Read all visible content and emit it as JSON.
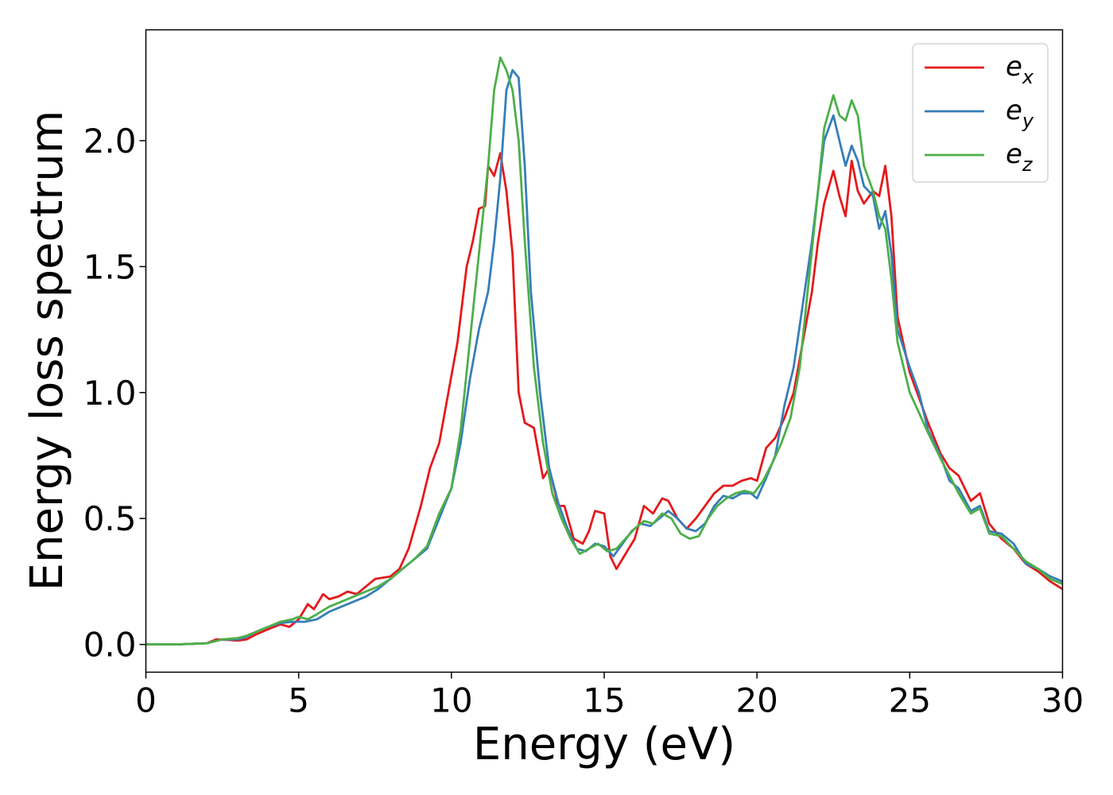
{
  "chart_data": {
    "type": "line",
    "xlabel": "Energy (eV)",
    "ylabel": "Energy loss spectrum",
    "xlim": [
      0,
      30
    ],
    "ylim": [
      -0.11,
      2.44
    ],
    "xticks": [
      0,
      5,
      10,
      15,
      20,
      25,
      30
    ],
    "xtick_labels": [
      "0",
      "5",
      "10",
      "15",
      "20",
      "25",
      "30"
    ],
    "yticks": [
      0.0,
      0.5,
      1.0,
      1.5,
      2.0
    ],
    "ytick_labels": [
      "0.0",
      "0.5",
      "1.0",
      "1.5",
      "2.0"
    ],
    "grid": false,
    "legend_position": "top-right",
    "series": [
      {
        "name": "e",
        "name_sub": "x",
        "color": "#e41a1c",
        "points": [
          [
            0,
            0
          ],
          [
            1,
            0
          ],
          [
            2,
            0.005
          ],
          [
            2.3,
            0.02
          ],
          [
            2.7,
            0.018
          ],
          [
            3,
            0.015
          ],
          [
            3.3,
            0.02
          ],
          [
            3.6,
            0.04
          ],
          [
            4,
            0.06
          ],
          [
            4.4,
            0.08
          ],
          [
            4.7,
            0.07
          ],
          [
            5,
            0.1
          ],
          [
            5.3,
            0.16
          ],
          [
            5.5,
            0.14
          ],
          [
            5.8,
            0.2
          ],
          [
            6,
            0.18
          ],
          [
            6.3,
            0.19
          ],
          [
            6.6,
            0.21
          ],
          [
            6.9,
            0.2
          ],
          [
            7.2,
            0.23
          ],
          [
            7.5,
            0.26
          ],
          [
            8,
            0.27
          ],
          [
            8.3,
            0.3
          ],
          [
            8.6,
            0.38
          ],
          [
            9,
            0.55
          ],
          [
            9.3,
            0.7
          ],
          [
            9.6,
            0.8
          ],
          [
            9.9,
            1.0
          ],
          [
            10.2,
            1.2
          ],
          [
            10.5,
            1.5
          ],
          [
            10.7,
            1.6
          ],
          [
            10.9,
            1.73
          ],
          [
            11.1,
            1.74
          ],
          [
            11.2,
            1.9
          ],
          [
            11.4,
            1.86
          ],
          [
            11.6,
            1.95
          ],
          [
            11.8,
            1.8
          ],
          [
            12.0,
            1.55
          ],
          [
            12.2,
            1.0
          ],
          [
            12.4,
            0.88
          ],
          [
            12.7,
            0.86
          ],
          [
            13.0,
            0.66
          ],
          [
            13.2,
            0.7
          ],
          [
            13.5,
            0.55
          ],
          [
            13.7,
            0.55
          ],
          [
            14.0,
            0.42
          ],
          [
            14.3,
            0.4
          ],
          [
            14.5,
            0.45
          ],
          [
            14.7,
            0.53
          ],
          [
            15.0,
            0.52
          ],
          [
            15.2,
            0.35
          ],
          [
            15.4,
            0.3
          ],
          [
            15.7,
            0.36
          ],
          [
            16.0,
            0.42
          ],
          [
            16.3,
            0.55
          ],
          [
            16.6,
            0.52
          ],
          [
            16.9,
            0.58
          ],
          [
            17.1,
            0.57
          ],
          [
            17.4,
            0.5
          ],
          [
            17.7,
            0.46
          ],
          [
            18.0,
            0.5
          ],
          [
            18.3,
            0.55
          ],
          [
            18.6,
            0.6
          ],
          [
            18.9,
            0.63
          ],
          [
            19.2,
            0.63
          ],
          [
            19.5,
            0.65
          ],
          [
            19.8,
            0.66
          ],
          [
            20.0,
            0.65
          ],
          [
            20.3,
            0.78
          ],
          [
            20.6,
            0.82
          ],
          [
            20.9,
            0.9
          ],
          [
            21.2,
            1.0
          ],
          [
            21.5,
            1.2
          ],
          [
            21.8,
            1.4
          ],
          [
            22.0,
            1.6
          ],
          [
            22.2,
            1.75
          ],
          [
            22.5,
            1.88
          ],
          [
            22.7,
            1.78
          ],
          [
            22.9,
            1.7
          ],
          [
            23.1,
            1.92
          ],
          [
            23.3,
            1.8
          ],
          [
            23.5,
            1.75
          ],
          [
            23.8,
            1.8
          ],
          [
            24.0,
            1.78
          ],
          [
            24.2,
            1.9
          ],
          [
            24.4,
            1.7
          ],
          [
            24.6,
            1.3
          ],
          [
            25.0,
            1.08
          ],
          [
            25.3,
            0.98
          ],
          [
            25.6,
            0.88
          ],
          [
            26.0,
            0.76
          ],
          [
            26.3,
            0.7
          ],
          [
            26.6,
            0.67
          ],
          [
            27.0,
            0.57
          ],
          [
            27.3,
            0.6
          ],
          [
            27.6,
            0.48
          ],
          [
            28.0,
            0.42
          ],
          [
            28.4,
            0.38
          ],
          [
            28.8,
            0.32
          ],
          [
            29.2,
            0.29
          ],
          [
            29.6,
            0.25
          ],
          [
            30,
            0.22
          ]
        ]
      },
      {
        "name": "e",
        "name_sub": "y",
        "color": "#377eb8",
        "points": [
          [
            0,
            0
          ],
          [
            1,
            0
          ],
          [
            2,
            0.005
          ],
          [
            2.5,
            0.02
          ],
          [
            3,
            0.02
          ],
          [
            3.3,
            0.03
          ],
          [
            3.6,
            0.05
          ],
          [
            4,
            0.07
          ],
          [
            4.4,
            0.085
          ],
          [
            4.8,
            0.09
          ],
          [
            5.2,
            0.09
          ],
          [
            5.6,
            0.1
          ],
          [
            6,
            0.13
          ],
          [
            6.4,
            0.15
          ],
          [
            6.8,
            0.17
          ],
          [
            7.2,
            0.19
          ],
          [
            7.6,
            0.22
          ],
          [
            8,
            0.26
          ],
          [
            8.4,
            0.3
          ],
          [
            8.8,
            0.34
          ],
          [
            9.2,
            0.38
          ],
          [
            9.6,
            0.5
          ],
          [
            10,
            0.62
          ],
          [
            10.3,
            0.8
          ],
          [
            10.6,
            1.05
          ],
          [
            10.9,
            1.25
          ],
          [
            11.2,
            1.4
          ],
          [
            11.4,
            1.6
          ],
          [
            11.6,
            1.85
          ],
          [
            11.8,
            2.2
          ],
          [
            12.0,
            2.28
          ],
          [
            12.2,
            2.25
          ],
          [
            12.4,
            1.9
          ],
          [
            12.6,
            1.4
          ],
          [
            12.9,
            1.0
          ],
          [
            13.2,
            0.7
          ],
          [
            13.5,
            0.56
          ],
          [
            13.8,
            0.46
          ],
          [
            14.1,
            0.38
          ],
          [
            14.4,
            0.37
          ],
          [
            14.7,
            0.4
          ],
          [
            15.0,
            0.39
          ],
          [
            15.3,
            0.35
          ],
          [
            15.6,
            0.4
          ],
          [
            15.9,
            0.45
          ],
          [
            16.2,
            0.48
          ],
          [
            16.5,
            0.47
          ],
          [
            16.8,
            0.5
          ],
          [
            17.1,
            0.53
          ],
          [
            17.4,
            0.5
          ],
          [
            17.7,
            0.46
          ],
          [
            18.0,
            0.45
          ],
          [
            18.3,
            0.48
          ],
          [
            18.6,
            0.55
          ],
          [
            18.9,
            0.59
          ],
          [
            19.2,
            0.58
          ],
          [
            19.5,
            0.6
          ],
          [
            19.8,
            0.6
          ],
          [
            20.0,
            0.58
          ],
          [
            20.3,
            0.66
          ],
          [
            20.6,
            0.75
          ],
          [
            20.9,
            0.95
          ],
          [
            21.2,
            1.1
          ],
          [
            21.5,
            1.35
          ],
          [
            21.8,
            1.6
          ],
          [
            22.0,
            1.8
          ],
          [
            22.2,
            2.0
          ],
          [
            22.5,
            2.1
          ],
          [
            22.7,
            2.0
          ],
          [
            22.9,
            1.9
          ],
          [
            23.1,
            1.98
          ],
          [
            23.3,
            1.92
          ],
          [
            23.5,
            1.82
          ],
          [
            23.8,
            1.78
          ],
          [
            24.0,
            1.65
          ],
          [
            24.2,
            1.72
          ],
          [
            24.4,
            1.55
          ],
          [
            24.6,
            1.25
          ],
          [
            25.0,
            1.1
          ],
          [
            25.3,
            1.0
          ],
          [
            25.6,
            0.85
          ],
          [
            26.0,
            0.75
          ],
          [
            26.3,
            0.65
          ],
          [
            26.6,
            0.62
          ],
          [
            27.0,
            0.53
          ],
          [
            27.3,
            0.55
          ],
          [
            27.6,
            0.45
          ],
          [
            28.0,
            0.44
          ],
          [
            28.4,
            0.4
          ],
          [
            28.8,
            0.32
          ],
          [
            29.2,
            0.3
          ],
          [
            29.6,
            0.27
          ],
          [
            30,
            0.25
          ]
        ]
      },
      {
        "name": "e",
        "name_sub": "z",
        "color": "#4daf4a",
        "points": [
          [
            0,
            0
          ],
          [
            1,
            0
          ],
          [
            2,
            0.005
          ],
          [
            2.5,
            0.02
          ],
          [
            3,
            0.025
          ],
          [
            3.3,
            0.035
          ],
          [
            3.6,
            0.05
          ],
          [
            4,
            0.07
          ],
          [
            4.4,
            0.09
          ],
          [
            4.8,
            0.1
          ],
          [
            5.0,
            0.11
          ],
          [
            5.3,
            0.1
          ],
          [
            5.6,
            0.12
          ],
          [
            6,
            0.15
          ],
          [
            6.4,
            0.17
          ],
          [
            6.8,
            0.19
          ],
          [
            7.2,
            0.21
          ],
          [
            7.6,
            0.23
          ],
          [
            8,
            0.26
          ],
          [
            8.4,
            0.3
          ],
          [
            8.8,
            0.34
          ],
          [
            9.2,
            0.39
          ],
          [
            9.6,
            0.52
          ],
          [
            10,
            0.62
          ],
          [
            10.3,
            0.85
          ],
          [
            10.6,
            1.2
          ],
          [
            10.9,
            1.55
          ],
          [
            11.2,
            1.9
          ],
          [
            11.4,
            2.2
          ],
          [
            11.6,
            2.33
          ],
          [
            11.8,
            2.28
          ],
          [
            12.0,
            2.2
          ],
          [
            12.2,
            2.0
          ],
          [
            12.4,
            1.6
          ],
          [
            12.7,
            1.1
          ],
          [
            13.0,
            0.8
          ],
          [
            13.3,
            0.6
          ],
          [
            13.6,
            0.5
          ],
          [
            13.9,
            0.42
          ],
          [
            14.2,
            0.36
          ],
          [
            14.5,
            0.38
          ],
          [
            14.8,
            0.4
          ],
          [
            15.1,
            0.37
          ],
          [
            15.4,
            0.38
          ],
          [
            15.7,
            0.42
          ],
          [
            16.0,
            0.46
          ],
          [
            16.3,
            0.49
          ],
          [
            16.6,
            0.48
          ],
          [
            16.9,
            0.52
          ],
          [
            17.2,
            0.5
          ],
          [
            17.5,
            0.44
          ],
          [
            17.8,
            0.42
          ],
          [
            18.1,
            0.43
          ],
          [
            18.4,
            0.5
          ],
          [
            18.7,
            0.55
          ],
          [
            19.0,
            0.58
          ],
          [
            19.3,
            0.6
          ],
          [
            19.6,
            0.61
          ],
          [
            19.9,
            0.6
          ],
          [
            20.2,
            0.65
          ],
          [
            20.5,
            0.72
          ],
          [
            20.8,
            0.8
          ],
          [
            21.1,
            0.9
          ],
          [
            21.4,
            1.1
          ],
          [
            21.7,
            1.45
          ],
          [
            22.0,
            1.8
          ],
          [
            22.2,
            2.05
          ],
          [
            22.5,
            2.18
          ],
          [
            22.7,
            2.1
          ],
          [
            22.9,
            2.08
          ],
          [
            23.1,
            2.16
          ],
          [
            23.3,
            2.1
          ],
          [
            23.5,
            1.9
          ],
          [
            23.8,
            1.8
          ],
          [
            24.0,
            1.7
          ],
          [
            24.2,
            1.65
          ],
          [
            24.4,
            1.45
          ],
          [
            24.6,
            1.2
          ],
          [
            25.0,
            1.0
          ],
          [
            25.3,
            0.92
          ],
          [
            25.6,
            0.84
          ],
          [
            26.0,
            0.74
          ],
          [
            26.3,
            0.67
          ],
          [
            26.6,
            0.6
          ],
          [
            27.0,
            0.52
          ],
          [
            27.3,
            0.54
          ],
          [
            27.6,
            0.44
          ],
          [
            28.0,
            0.43
          ],
          [
            28.4,
            0.38
          ],
          [
            28.8,
            0.33
          ],
          [
            29.2,
            0.3
          ],
          [
            29.6,
            0.26
          ],
          [
            30,
            0.24
          ]
        ]
      }
    ]
  }
}
